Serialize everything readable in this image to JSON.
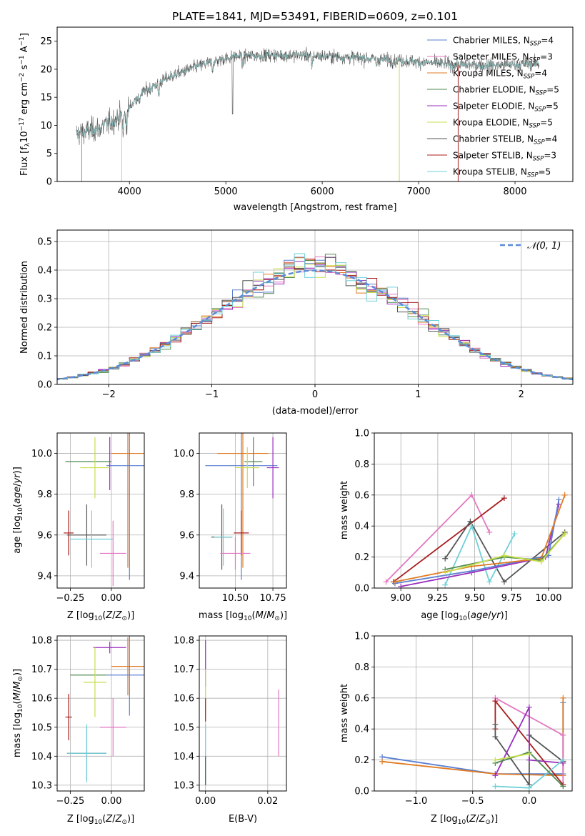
{
  "chart_data": [
    {
      "id": "spectrum",
      "type": "line",
      "title": "PLATE=1841, MJD=53491, FIBERID=0609, z=0.101",
      "xlabel": "wavelength [Angstrom, rest frame]",
      "ylabel": "Flux [f_λ10^-17 erg cm^-2 s^-1 A^-1]",
      "xlim": [
        3250,
        8600
      ],
      "ylim": [
        0,
        27.5
      ],
      "xticks": [
        4000,
        5000,
        6000,
        7000,
        8000
      ],
      "yticks": [
        0,
        5,
        10,
        15,
        20,
        25
      ],
      "grid": false,
      "legend_position": "top-right",
      "series": [
        {
          "name": "Chabrier MILES, N_SSP=4",
          "color": "#5b7fd1"
        },
        {
          "name": "Salpeter MILES, N_SSP=3",
          "color": "#e377c2"
        },
        {
          "name": "Kroupa MILES, N_SSP=4",
          "color": "#e07b22"
        },
        {
          "name": "Chabrier ELODIE, N_SSP=5",
          "color": "#4f8a4f"
        },
        {
          "name": "Salpeter ELODIE, N_SSP=5",
          "color": "#9a2fbf"
        },
        {
          "name": "Kroupa ELODIE, N_SSP=5",
          "color": "#c9de4a"
        },
        {
          "name": "Chabrier STELIB, N_SSP=4",
          "color": "#555555"
        },
        {
          "name": "Salpeter STELIB, N_SSP=3",
          "color": "#a81d1d"
        },
        {
          "name": "Kroupa STELIB, N_SSP=5",
          "color": "#6fd0d8"
        }
      ],
      "continuum": {
        "x": [
          3450,
          3700,
          3950,
          4100,
          4400,
          4700,
          4900,
          5100,
          5400,
          5800,
          6200,
          6600,
          7000,
          7400,
          7800,
          8200
        ],
        "y": [
          8.5,
          9.5,
          12.0,
          15.5,
          18.5,
          20.5,
          21.5,
          22.3,
          22.5,
          22.5,
          22.2,
          21.8,
          21.3,
          20.8,
          20.7,
          21.0
        ]
      }
    },
    {
      "id": "residuals",
      "type": "histogram",
      "xlabel": "(data-model)/error",
      "ylabel": "Normed distribution",
      "xlim": [
        -2.5,
        2.5
      ],
      "ylim": [
        0,
        0.54
      ],
      "xticks": [
        -2,
        -1,
        0,
        1,
        2
      ],
      "yticks": [
        0.0,
        0.1,
        0.2,
        0.3,
        0.4,
        0.5
      ],
      "grid": true,
      "legend": {
        "label": "𝒩(0, 1)",
        "position": "top-right",
        "color": "#5b8bd9"
      },
      "bin_width": 0.1
    },
    {
      "id": "age_vs_Z",
      "type": "errorbar",
      "xlabel": "Z [log10(Z/Z⊙)]",
      "ylabel": "age  [log10(age/yr)]",
      "xlim": [
        -0.33,
        0.2
      ],
      "ylim": [
        9.34,
        10.1
      ],
      "xticks": [
        -0.25,
        0.0
      ],
      "xticklabels": [
        "−0.25",
        "0.00"
      ],
      "yticks": [
        9.4,
        9.6,
        9.8,
        10.0
      ],
      "grid": true,
      "points": [
        {
          "color": "#e07b22",
          "x": 0.1,
          "xerr": 0.1,
          "y": 10.0,
          "yerr": 0.56
        },
        {
          "color": "#5b7fd1",
          "x": 0.11,
          "xerr": 0.14,
          "y": 9.94,
          "yerr": 0.56
        },
        {
          "color": "#4f8a4f",
          "x": -0.14,
          "xerr": 0.14,
          "y": 9.96,
          "yerr": 0.0
        },
        {
          "color": "#9a2fbf",
          "x": -0.01,
          "xerr": 0.0,
          "y": 9.95,
          "yerr": 0.13
        },
        {
          "color": "#c9de4a",
          "x": -0.1,
          "xerr": 0.09,
          "y": 9.93,
          "yerr": 0.15
        },
        {
          "color": "#a81d1d",
          "x": -0.26,
          "xerr": 0.03,
          "y": 9.61,
          "yerr": 0.11
        },
        {
          "color": "#555555",
          "x": -0.15,
          "xerr": 0.12,
          "y": 9.6,
          "yerr": 0.15
        },
        {
          "color": "#6fd0d8",
          "x": -0.12,
          "xerr": 0.13,
          "y": 9.58,
          "yerr": 0.14
        },
        {
          "color": "#e377c2",
          "x": 0.01,
          "xerr": 0.08,
          "y": 9.51,
          "yerr": 0.16
        }
      ]
    },
    {
      "id": "age_vs_mass",
      "type": "errorbar",
      "xlabel": "mass [log10(M/M⊙)]",
      "xlim": [
        10.26,
        10.84
      ],
      "ylim": [
        9.34,
        10.1
      ],
      "xticks": [
        10.5,
        10.75
      ],
      "xticklabels": [
        "10.50",
        "10.75"
      ],
      "yticks": [
        9.4,
        9.6,
        9.8,
        10.0
      ],
      "grid": true,
      "points": [
        {
          "color": "#e07b22",
          "x": 10.55,
          "xerr": 0.17,
          "y": 10.0,
          "yerr": 0.56
        },
        {
          "color": "#5b7fd1",
          "x": 10.54,
          "xerr": 0.24,
          "y": 9.94,
          "yerr": 0.56
        },
        {
          "color": "#4f8a4f",
          "x": 10.62,
          "xerr": 0.06,
          "y": 9.96,
          "yerr": 0.12
        },
        {
          "color": "#9a2fbf",
          "x": 10.75,
          "xerr": 0.04,
          "y": 9.93,
          "yerr": 0.15
        },
        {
          "color": "#c9de4a",
          "x": 10.58,
          "xerr": 0.08,
          "y": 9.93,
          "yerr": 0.1
        },
        {
          "color": "#a81d1d",
          "x": 10.54,
          "xerr": 0.05,
          "y": 9.61,
          "yerr": 0.11
        },
        {
          "color": "#555555",
          "x": 10.41,
          "xerr": 0.07,
          "y": 9.59,
          "yerr": 0.16
        },
        {
          "color": "#6fd0d8",
          "x": 10.42,
          "xerr": 0.06,
          "y": 9.59,
          "yerr": 0.14
        },
        {
          "color": "#e377c2",
          "x": 10.5,
          "xerr": 0.1,
          "y": 9.51,
          "yerr": 0.08
        }
      ]
    },
    {
      "id": "weights_vs_age",
      "type": "line",
      "xlabel": "age  [log10(age/yr)]",
      "ylabel": "mass weight",
      "xlim": [
        8.82,
        10.16
      ],
      "ylim": [
        0,
        1.0
      ],
      "xticks": [
        9.0,
        9.25,
        9.5,
        9.75,
        10.0
      ],
      "xticklabels": [
        "9.00",
        "9.25",
        "9.50",
        "9.75",
        "10.00"
      ],
      "yticks": [
        0.0,
        0.2,
        0.4,
        0.6,
        0.8,
        1.0
      ],
      "grid": true,
      "series": [
        {
          "color": "#e377c2",
          "x": [
            8.9,
            9.48,
            9.6
          ],
          "y": [
            0.04,
            0.6,
            0.36
          ]
        },
        {
          "color": "#a81d1d",
          "x": [
            8.95,
            9.7
          ],
          "y": [
            0.04,
            0.58
          ]
        },
        {
          "color": "#555555",
          "x": [
            9.3,
            9.47,
            9.7,
            10.11
          ],
          "y": [
            0.19,
            0.43,
            0.04,
            0.36
          ]
        },
        {
          "color": "#6fd0d8",
          "x": [
            9.3,
            9.48,
            9.6,
            9.77
          ],
          "y": [
            0.02,
            0.4,
            0.04,
            0.35
          ]
        },
        {
          "color": "#9a2fbf",
          "x": [
            9.0,
            9.48,
            9.98,
            10.07
          ],
          "y": [
            0.01,
            0.1,
            0.2,
            0.54
          ]
        },
        {
          "color": "#5b7fd1",
          "x": [
            8.96,
            9.48,
            10.0,
            10.07
          ],
          "y": [
            0.03,
            0.11,
            0.21,
            0.57
          ]
        },
        {
          "color": "#e07b22",
          "x": [
            8.96,
            9.48,
            9.95,
            10.11
          ],
          "y": [
            0.04,
            0.14,
            0.19,
            0.6
          ]
        },
        {
          "color": "#4f8a4f",
          "x": [
            9.3,
            9.7,
            9.95,
            10.11
          ],
          "y": [
            0.12,
            0.2,
            0.18,
            0.35
          ]
        },
        {
          "color": "#c9de4a",
          "x": [
            9.3,
            9.7,
            9.95,
            10.11
          ],
          "y": [
            0.1,
            0.21,
            0.17,
            0.35
          ]
        }
      ]
    },
    {
      "id": "mass_vs_Z",
      "type": "errorbar",
      "xlabel": "Z [log10(Z/Z⊙)]",
      "ylabel": "mass [log10(M/M⊙)]",
      "xlim": [
        -0.33,
        0.2
      ],
      "ylim": [
        10.28,
        10.815
      ],
      "xticks": [
        -0.25,
        0.0
      ],
      "xticklabels": [
        "−0.25",
        "0.00"
      ],
      "yticks": [
        10.3,
        10.4,
        10.5,
        10.6,
        10.7,
        10.8
      ],
      "grid": true,
      "points": [
        {
          "color": "#9a2fbf",
          "x": -0.01,
          "xerr": 0.1,
          "y": 10.775,
          "yerr": 0.02
        },
        {
          "color": "#e07b22",
          "x": 0.1,
          "xerr": 0.1,
          "y": 10.71,
          "yerr": 0.1
        },
        {
          "color": "#5b7fd1",
          "x": 0.11,
          "xerr": 0.14,
          "y": 10.68,
          "yerr": 0.14
        },
        {
          "color": "#4f8a4f",
          "x": -0.14,
          "xerr": 0.11,
          "y": 10.68,
          "yerr": 0.0
        },
        {
          "color": "#c9de4a",
          "x": -0.1,
          "xerr": 0.07,
          "y": 10.655,
          "yerr": 0.12
        },
        {
          "color": "#a81d1d",
          "x": -0.26,
          "xerr": 0.02,
          "y": 10.535,
          "yerr": 0.08
        },
        {
          "color": "#e377c2",
          "x": 0.01,
          "xerr": 0.08,
          "y": 10.5,
          "yerr": 0.1
        },
        {
          "color": "#555555",
          "x": -0.15,
          "xerr": 0.12,
          "y": 10.41,
          "yerr": 0.09
        },
        {
          "color": "#6fd0d8",
          "x": -0.15,
          "xerr": 0.12,
          "y": 10.41,
          "yerr": 0.1
        }
      ]
    },
    {
      "id": "mass_vs_EBV",
      "type": "errorbar",
      "xlabel": "E(B-V)",
      "xlim": [
        -0.002,
        0.026
      ],
      "ylim": [
        10.28,
        10.815
      ],
      "xticks": [
        0.0,
        0.02
      ],
      "xticklabels": [
        "0.00",
        "0.02"
      ],
      "yticks": [
        10.3,
        10.4,
        10.5,
        10.6,
        10.7,
        10.8
      ],
      "grid": true,
      "points": [
        {
          "color": "#9a2fbf",
          "x": 0.0,
          "xerr": 0.0,
          "y": 10.72,
          "yerr": 0.08
        },
        {
          "color": "#c9de4a",
          "x": 0.0,
          "xerr": 0.0,
          "y": 10.62,
          "yerr": 0.08
        },
        {
          "color": "#a81d1d",
          "x": 0.0,
          "xerr": 0.0,
          "y": 10.56,
          "yerr": 0.04
        },
        {
          "color": "#e377c2",
          "x": 0.0235,
          "xerr": 0.0,
          "y": 10.515,
          "yerr": 0.115
        },
        {
          "color": "#6fd0d8",
          "x": 0.0,
          "xerr": 0.0,
          "y": 10.41,
          "yerr": 0.1
        },
        {
          "color": "#555555",
          "x": 0.0,
          "xerr": 0.0,
          "y": 10.35,
          "yerr": 0.05
        }
      ]
    },
    {
      "id": "weights_vs_Z",
      "type": "line",
      "xlabel": "Z [log10(Z/Z⊙)]",
      "ylabel": "mass weight",
      "xlim": [
        -1.37,
        0.38
      ],
      "ylim": [
        0,
        1.0
      ],
      "xticks": [
        -1.0,
        -0.5,
        0.0
      ],
      "xticklabels": [
        "−1.0",
        "−0.5",
        "0.0"
      ],
      "yticks": [
        0.0,
        0.2,
        0.4,
        0.6,
        0.8,
        1.0
      ],
      "grid": true,
      "series": [
        {
          "color": "#5b7fd1",
          "x": [
            -1.3,
            -0.3,
            0.3,
            0.3
          ],
          "y": [
            0.22,
            0.11,
            0.11,
            0.57
          ]
        },
        {
          "color": "#e07b22",
          "x": [
            -1.3,
            -0.3,
            0.3,
            0.3
          ],
          "y": [
            0.19,
            0.11,
            0.1,
            0.6
          ]
        },
        {
          "color": "#e377c2",
          "x": [
            -0.3,
            0.3,
            0.3
          ],
          "y": [
            0.6,
            0.36,
            0.04
          ]
        },
        {
          "color": "#a81d1d",
          "x": [
            -0.3,
            -0.3,
            0.3
          ],
          "y": [
            0.4,
            0.58,
            0.04
          ]
        },
        {
          "color": "#555555",
          "x": [
            -0.3,
            -0.3,
            0.0,
            0.0,
            0.3
          ],
          "y": [
            0.43,
            0.35,
            0.04,
            0.36,
            0.19
          ]
        },
        {
          "color": "#9a2fbf",
          "x": [
            -0.3,
            0.0,
            0.0,
            0.3
          ],
          "y": [
            0.1,
            0.54,
            0.2,
            0.18
          ]
        },
        {
          "color": "#6fd0d8",
          "x": [
            -0.3,
            0.0,
            0.3
          ],
          "y": [
            0.03,
            0.02,
            0.2
          ]
        },
        {
          "color": "#4f8a4f",
          "x": [
            -0.3,
            0.0,
            0.3
          ],
          "y": [
            0.18,
            0.25,
            0.03
          ]
        },
        {
          "color": "#c9de4a",
          "x": [
            -0.3,
            0.0
          ],
          "y": [
            0.2,
            0.24
          ]
        }
      ]
    }
  ]
}
